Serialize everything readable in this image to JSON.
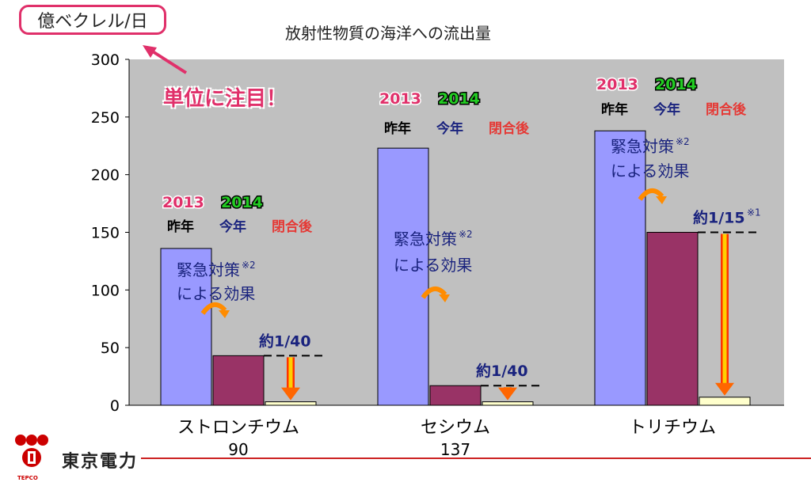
{
  "unit_label": "億ベクレル/日",
  "callout": "単位に注目！",
  "colors": {
    "before_2013": "#9999ff",
    "after_2014": "#993366",
    "closure": "#ffffcc",
    "plot_bg": "#c0c0c0",
    "accent_pink": "#e0306a",
    "arrow_orange": "#ff8c00"
  },
  "chart_data": {
    "type": "bar",
    "title": "放射性物質の海洋への流出量",
    "ylim": [
      0,
      300
    ],
    "yticks": [
      "0",
      "50",
      "100",
      "150",
      "200",
      "250",
      "300"
    ],
    "categories": [
      "ストロンチウム",
      "セシウム",
      "トリチウム"
    ],
    "category_sublabels": [
      "90",
      "137",
      ""
    ],
    "series": [
      {
        "name": "昨年",
        "values": [
          136,
          223,
          238
        ]
      },
      {
        "name": "今年",
        "values": [
          43,
          17,
          150
        ]
      },
      {
        "name": "閉合後",
        "values": [
          3,
          3,
          7
        ]
      }
    ],
    "year_labels": {
      "before": "2013",
      "after": "2014"
    },
    "column_labels": [
      "昨年",
      "今年",
      "閉合後"
    ],
    "effect_label_line1": "緊急対策",
    "effect_label_note": "※2",
    "effect_label_line2": "による効果",
    "reduction_labels": [
      {
        "text": "約1/40",
        "note": ""
      },
      {
        "text": "約1/40",
        "note": ""
      },
      {
        "text": "約1/15",
        "note": "※1"
      }
    ]
  },
  "footer": {
    "company": "東京電力",
    "company_en": "TEPCO"
  }
}
